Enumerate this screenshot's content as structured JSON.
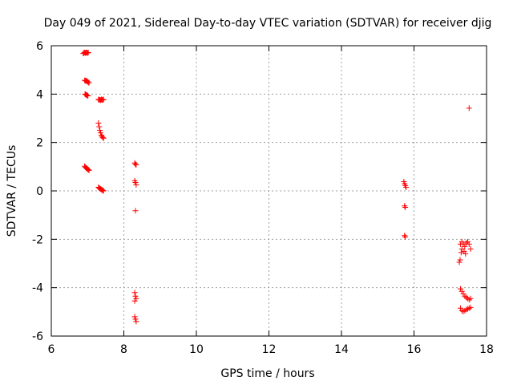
{
  "chart_data": {
    "type": "scatter",
    "title": "Day 049 of 2021, Sidereal Day-to-day VTEC variation (SDTVAR) for receiver djig",
    "xlabel": "GPS time / hours",
    "ylabel": "SDTVAR / TECUs",
    "xlim": [
      6,
      18
    ],
    "ylim": [
      -6,
      6
    ],
    "xticks": [
      6,
      8,
      10,
      12,
      14,
      16,
      18
    ],
    "yticks": [
      -6,
      -4,
      -2,
      0,
      2,
      4,
      6
    ],
    "grid": true,
    "marker": "+",
    "color": "#ff0000",
    "series": [
      {
        "name": "SDTVAR",
        "points": [
          [
            6.88,
            5.68
          ],
          [
            6.9,
            5.7
          ],
          [
            6.92,
            5.72
          ],
          [
            6.94,
            5.7
          ],
          [
            6.96,
            5.71
          ],
          [
            6.98,
            5.72
          ],
          [
            7.0,
            5.7
          ],
          [
            7.02,
            5.72
          ],
          [
            6.92,
            4.57
          ],
          [
            6.94,
            4.55
          ],
          [
            6.96,
            4.56
          ],
          [
            6.98,
            4.53
          ],
          [
            7.0,
            4.52
          ],
          [
            7.02,
            4.48
          ],
          [
            7.04,
            4.47
          ],
          [
            6.93,
            4.0
          ],
          [
            6.95,
            3.98
          ],
          [
            6.97,
            3.96
          ],
          [
            6.99,
            3.95
          ],
          [
            7.01,
            3.93
          ],
          [
            6.92,
            1.02
          ],
          [
            6.94,
            0.98
          ],
          [
            6.96,
            0.95
          ],
          [
            6.98,
            0.93
          ],
          [
            7.0,
            0.9
          ],
          [
            7.02,
            0.88
          ],
          [
            7.04,
            0.85
          ],
          [
            7.3,
            3.78
          ],
          [
            7.32,
            3.76
          ],
          [
            7.34,
            3.77
          ],
          [
            7.36,
            3.75
          ],
          [
            7.38,
            3.78
          ],
          [
            7.4,
            3.77
          ],
          [
            7.42,
            3.76
          ],
          [
            7.44,
            3.78
          ],
          [
            7.3,
            2.8
          ],
          [
            7.32,
            2.65
          ],
          [
            7.34,
            2.5
          ],
          [
            7.36,
            2.4
          ],
          [
            7.38,
            2.3
          ],
          [
            7.4,
            2.25
          ],
          [
            7.42,
            2.2
          ],
          [
            7.44,
            2.18
          ],
          [
            7.3,
            0.15
          ],
          [
            7.32,
            0.12
          ],
          [
            7.34,
            0.1
          ],
          [
            7.36,
            0.08
          ],
          [
            7.38,
            0.06
          ],
          [
            7.4,
            0.04
          ],
          [
            7.42,
            0.02
          ],
          [
            7.44,
            0.0
          ],
          [
            8.3,
            1.15
          ],
          [
            8.32,
            1.1
          ],
          [
            8.34,
            1.08
          ],
          [
            8.3,
            0.42
          ],
          [
            8.32,
            0.35
          ],
          [
            8.34,
            0.25
          ],
          [
            8.32,
            -0.82
          ],
          [
            8.3,
            -4.2
          ],
          [
            8.32,
            -4.35
          ],
          [
            8.34,
            -4.45
          ],
          [
            8.3,
            -4.55
          ],
          [
            8.3,
            -5.2
          ],
          [
            8.32,
            -5.3
          ],
          [
            8.34,
            -5.4
          ],
          [
            15.72,
            0.38
          ],
          [
            15.74,
            0.3
          ],
          [
            15.76,
            0.22
          ],
          [
            15.78,
            0.15
          ],
          [
            15.74,
            -0.62
          ],
          [
            15.76,
            -0.68
          ],
          [
            15.74,
            -1.85
          ],
          [
            15.76,
            -1.9
          ],
          [
            17.25,
            -2.95
          ],
          [
            17.27,
            -2.85
          ],
          [
            17.3,
            -2.55
          ],
          [
            17.32,
            -2.4
          ],
          [
            17.28,
            -2.2
          ],
          [
            17.32,
            -2.1
          ],
          [
            17.36,
            -2.2
          ],
          [
            17.4,
            -2.3
          ],
          [
            17.44,
            -2.15
          ],
          [
            17.48,
            -2.1
          ],
          [
            17.52,
            -2.2
          ],
          [
            17.56,
            -2.4
          ],
          [
            17.42,
            -2.6
          ],
          [
            17.38,
            -2.5
          ],
          [
            17.28,
            -4.05
          ],
          [
            17.32,
            -4.15
          ],
          [
            17.36,
            -4.25
          ],
          [
            17.4,
            -4.35
          ],
          [
            17.44,
            -4.4
          ],
          [
            17.48,
            -4.45
          ],
          [
            17.52,
            -4.5
          ],
          [
            17.56,
            -4.45
          ],
          [
            17.28,
            -4.85
          ],
          [
            17.32,
            -4.95
          ],
          [
            17.36,
            -4.98
          ],
          [
            17.4,
            -4.95
          ],
          [
            17.44,
            -4.9
          ],
          [
            17.48,
            -4.88
          ],
          [
            17.52,
            -4.85
          ],
          [
            17.56,
            -4.82
          ],
          [
            17.52,
            3.42
          ]
        ]
      }
    ]
  }
}
